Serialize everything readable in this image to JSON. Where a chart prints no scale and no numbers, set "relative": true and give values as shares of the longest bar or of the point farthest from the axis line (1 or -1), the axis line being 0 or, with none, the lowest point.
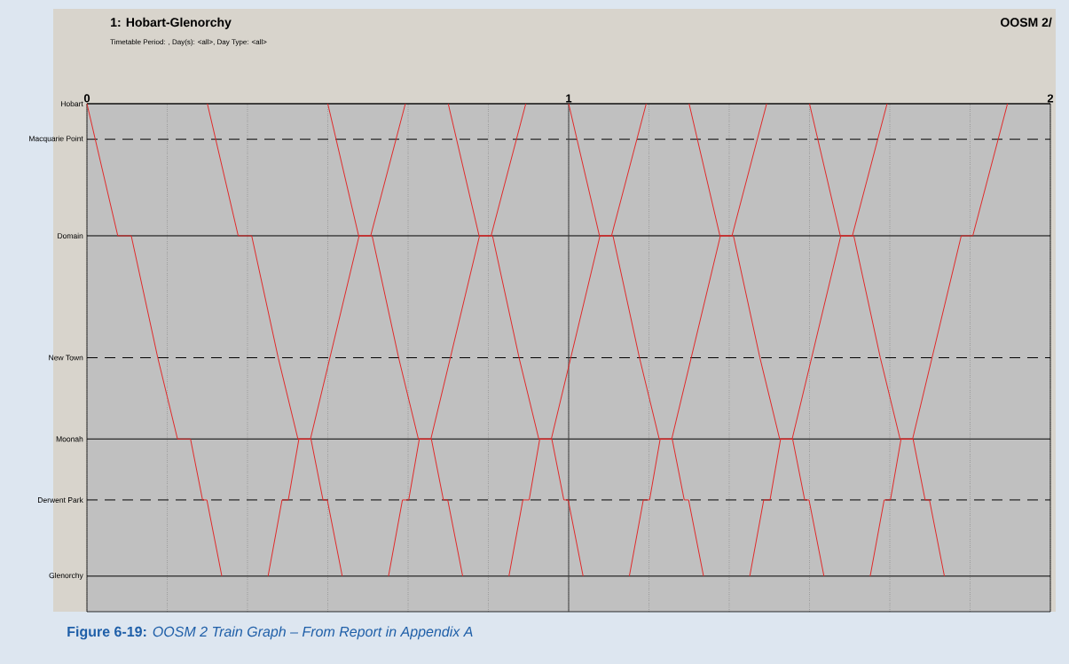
{
  "chart_data": {
    "type": "line",
    "title": "1: Hobart-Glenorchy",
    "subtitle": "Timetable Period: , Day(s):  <all>,  Day Type: <all>",
    "annotations": [
      "OOSM 2/",
      "**Figure 6-19:** *OOSM 2 Train Graph – From Report in Appendix A*"
    ],
    "relative": true,
    "xlim": [
      0,
      2
    ],
    "xticks": [
      0,
      {
        "value": 0.1667,
        "label": null
      },
      {
        "value": 0.3333,
        "label": null
      },
      {
        "value": 0.5,
        "label": null
      },
      {
        "value": 0.6667,
        "label": null
      },
      {
        "value": 0.8333,
        "label": null
      },
      1,
      {
        "value": 1.1667,
        "label": null
      },
      {
        "value": 1.3333,
        "label": null
      },
      {
        "value": 1.5,
        "label": null
      },
      {
        "value": 1.6667,
        "label": null
      },
      {
        "value": 1.8333,
        "label": null
      },
      2
    ],
    "grid": "x",
    "marker": "none",
    "line_style": "solid",
    "ref_lines": [
      {
        "axis": "y",
        "value": 1,
        "label": "Hobart",
        "line_style": "solid",
        "color": "#000000"
      },
      {
        "axis": "y",
        "value": 0.93,
        "label": "Macquarie Point",
        "line_style": "dashed",
        "color": "#000000"
      },
      {
        "axis": "y",
        "value": 0.74,
        "label": "Domain",
        "line_style": "solid",
        "color": "#000000"
      },
      {
        "axis": "y",
        "value": 0.5,
        "label": "New Town",
        "line_style": "dashed",
        "color": "#000000"
      },
      {
        "axis": "y",
        "value": 0.34,
        "label": "Moonah",
        "line_style": "solid",
        "color": "#000000"
      },
      {
        "axis": "y",
        "value": 0.22,
        "label": "Derwent Park",
        "line_style": "dashed",
        "color": "#000000"
      },
      {
        "axis": "y",
        "value": 0.07,
        "label": "Glenorchy",
        "line_style": "solid",
        "color": "#000000"
      },
      {
        "axis": "x",
        "value": 1,
        "line_style": "solid",
        "color": "#404040"
      }
    ],
    "series": [
      {
        "color": "#e02828",
        "x": [
          0,
          0.064,
          0.092,
          0.147,
          0.188,
          0.215,
          0.24,
          0.249,
          0.28
        ],
        "values": [
          1,
          0.74,
          0.74,
          0.5,
          0.34,
          0.34,
          0.22,
          0.22,
          0.07
        ]
      },
      {
        "color": "#e02828",
        "x": [
          0.25,
          0.314,
          0.342,
          0.397,
          0.438,
          0.465,
          0.49,
          0.499,
          0.53
        ],
        "values": [
          1,
          0.74,
          0.74,
          0.5,
          0.34,
          0.34,
          0.22,
          0.22,
          0.07
        ]
      },
      {
        "color": "#e02828",
        "x": [
          0.5,
          0.564,
          0.592,
          0.647,
          0.688,
          0.715,
          0.74,
          0.749,
          0.78
        ],
        "values": [
          1,
          0.74,
          0.74,
          0.5,
          0.34,
          0.34,
          0.22,
          0.22,
          0.07
        ]
      },
      {
        "color": "#e02828",
        "x": [
          0.75,
          0.814,
          0.842,
          0.897,
          0.938,
          0.965,
          0.99,
          0.999,
          1.03
        ],
        "values": [
          1,
          0.74,
          0.74,
          0.5,
          0.34,
          0.34,
          0.22,
          0.22,
          0.07
        ]
      },
      {
        "color": "#e02828",
        "x": [
          1,
          1.064,
          1.092,
          1.147,
          1.188,
          1.215,
          1.24,
          1.249,
          1.28
        ],
        "values": [
          1,
          0.74,
          0.74,
          0.5,
          0.34,
          0.34,
          0.22,
          0.22,
          0.07
        ]
      },
      {
        "color": "#e02828",
        "x": [
          1.25,
          1.314,
          1.342,
          1.397,
          1.438,
          1.465,
          1.49,
          1.499,
          1.53
        ],
        "values": [
          1,
          0.74,
          0.74,
          0.5,
          0.34,
          0.34,
          0.22,
          0.22,
          0.07
        ]
      },
      {
        "color": "#e02828",
        "x": [
          1.5,
          1.564,
          1.592,
          1.647,
          1.688,
          1.715,
          1.74,
          1.749,
          1.78
        ],
        "values": [
          1,
          0.74,
          0.74,
          0.5,
          0.34,
          0.34,
          0.22,
          0.22,
          0.07
        ]
      },
      {
        "color": "#e02828",
        "x": [
          0.376,
          0.405,
          0.418,
          0.44,
          0.464,
          0.565,
          0.589,
          0.661
        ],
        "values": [
          0.07,
          0.22,
          0.22,
          0.34,
          0.34,
          0.74,
          0.74,
          1
        ]
      },
      {
        "color": "#e02828",
        "x": [
          0.626,
          0.655,
          0.668,
          0.69,
          0.714,
          0.815,
          0.839,
          0.911
        ],
        "values": [
          0.07,
          0.22,
          0.22,
          0.34,
          0.34,
          0.74,
          0.74,
          1
        ]
      },
      {
        "color": "#e02828",
        "x": [
          0.876,
          0.905,
          0.918,
          0.94,
          0.964,
          1.065,
          1.089,
          1.161
        ],
        "values": [
          0.07,
          0.22,
          0.22,
          0.34,
          0.34,
          0.74,
          0.74,
          1
        ]
      },
      {
        "color": "#e02828",
        "x": [
          1.126,
          1.155,
          1.168,
          1.19,
          1.214,
          1.315,
          1.339,
          1.411
        ],
        "values": [
          0.07,
          0.22,
          0.22,
          0.34,
          0.34,
          0.74,
          0.74,
          1
        ]
      },
      {
        "color": "#e02828",
        "x": [
          1.376,
          1.405,
          1.418,
          1.44,
          1.464,
          1.565,
          1.589,
          1.661
        ],
        "values": [
          0.07,
          0.22,
          0.22,
          0.34,
          0.34,
          0.74,
          0.74,
          1
        ]
      },
      {
        "color": "#e02828",
        "x": [
          1.626,
          1.655,
          1.668,
          1.69,
          1.714,
          1.815,
          1.839,
          1.911
        ],
        "values": [
          0.07,
          0.22,
          0.22,
          0.34,
          0.34,
          0.74,
          0.74,
          1
        ]
      }
    ]
  }
}
